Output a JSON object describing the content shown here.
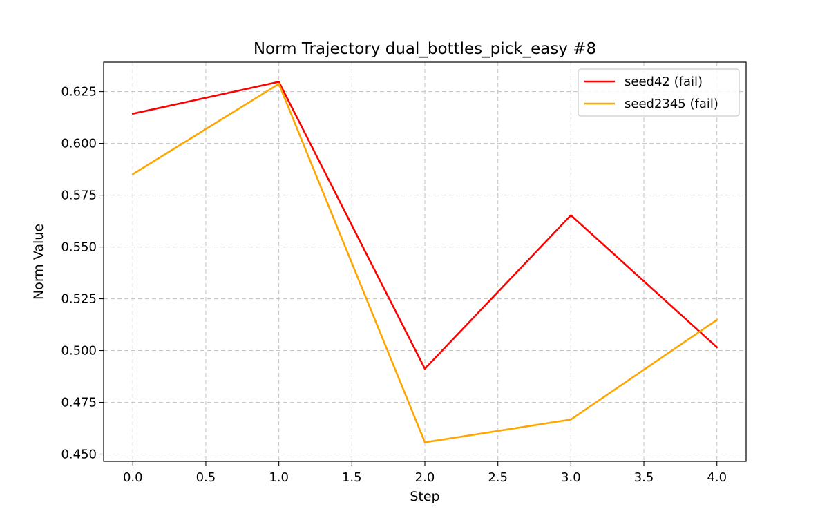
{
  "chart_data": {
    "type": "line",
    "title": "Norm Trajectory dual_bottles_pick_easy #8",
    "xlabel": "Step",
    "ylabel": "Norm Value",
    "x": [
      0,
      1,
      2,
      3,
      4
    ],
    "xlim": [
      -0.2,
      4.2
    ],
    "ylim": [
      0.4465,
      0.6392
    ],
    "xticks": [
      0.0,
      0.5,
      1.0,
      1.5,
      2.0,
      2.5,
      3.0,
      3.5,
      4.0
    ],
    "xtick_labels": [
      "0.0",
      "0.5",
      "1.0",
      "1.5",
      "2.0",
      "2.5",
      "3.0",
      "3.5",
      "4.0"
    ],
    "yticks": [
      0.45,
      0.475,
      0.5,
      0.525,
      0.55,
      0.575,
      0.6,
      0.625
    ],
    "ytick_labels": [
      "0.450",
      "0.475",
      "0.500",
      "0.525",
      "0.550",
      "0.575",
      "0.600",
      "0.625"
    ],
    "grid": true,
    "legend_position": "top-right",
    "series": [
      {
        "name": "seed42 (fail)",
        "color": "#ff0000",
        "values": [
          0.6143,
          0.6297,
          0.4912,
          0.5653,
          0.5016
        ]
      },
      {
        "name": "seed2345 (fail)",
        "color": "#ffa500",
        "values": [
          0.5851,
          0.6287,
          0.4557,
          0.4667,
          0.5148
        ]
      }
    ]
  }
}
